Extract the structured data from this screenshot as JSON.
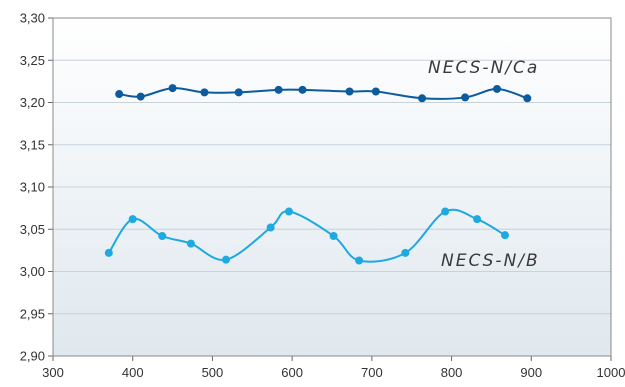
{
  "chart_data": {
    "type": "line",
    "title": "",
    "xlabel": "",
    "ylabel": "",
    "xlim": [
      300,
      1000
    ],
    "ylim": [
      2.9,
      3.3
    ],
    "x_ticks": [
      300,
      400,
      500,
      600,
      700,
      800,
      900,
      1000
    ],
    "x_tick_labels": [
      "300",
      "400",
      "500",
      "600",
      "700",
      "800",
      "900",
      "1000"
    ],
    "y_ticks": [
      2.9,
      2.95,
      3.0,
      3.05,
      3.1,
      3.15,
      3.2,
      3.25,
      3.3
    ],
    "y_tick_labels": [
      "2,90",
      "2,95",
      "3,00",
      "3,05",
      "3,10",
      "3,15",
      "3,20",
      "3,25",
      "3,30"
    ],
    "grid": "horizontal",
    "background_gradient": [
      "#ffffff",
      "#dfe8ee"
    ],
    "series": [
      {
        "name": "NECS-N/Ca",
        "color": "#0b5b9e",
        "x": [
          383,
          410,
          450,
          490,
          533,
          583,
          613,
          672,
          705,
          763,
          817,
          857,
          895
        ],
        "y": [
          3.21,
          3.207,
          3.217,
          3.212,
          3.212,
          3.215,
          3.215,
          3.213,
          3.213,
          3.205,
          3.206,
          3.216,
          3.205
        ]
      },
      {
        "name": "NECS-N/B",
        "color": "#1ea9e1",
        "x": [
          370,
          400,
          437,
          473,
          517,
          573,
          596,
          652,
          684,
          742,
          792,
          832,
          867
        ],
        "y": [
          3.022,
          3.062,
          3.042,
          3.033,
          3.014,
          3.052,
          3.071,
          3.042,
          3.013,
          3.022,
          3.071,
          3.062,
          3.043
        ]
      }
    ]
  }
}
